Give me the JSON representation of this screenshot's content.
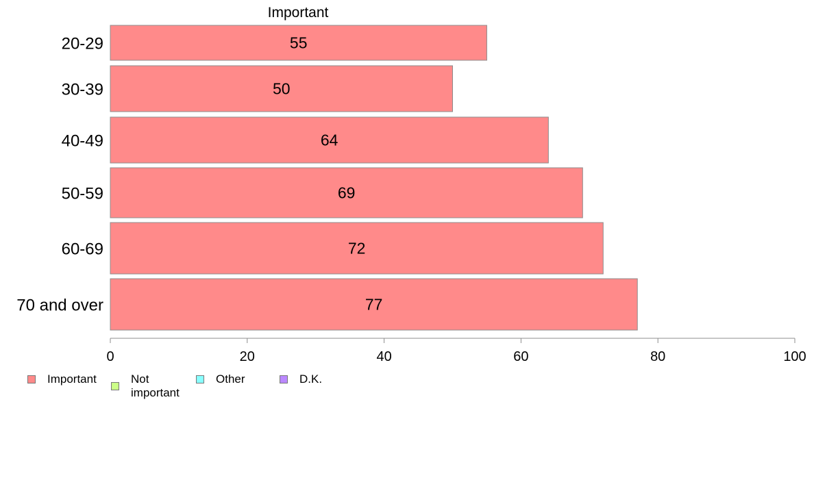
{
  "chart_data": {
    "type": "bar",
    "orientation": "horizontal",
    "title": "Important",
    "categories": [
      "20-29",
      "30-39",
      "40-49",
      "50-59",
      "60-69",
      "70 and over"
    ],
    "series": [
      {
        "name": "Important",
        "values": [
          55,
          50,
          64,
          69,
          72,
          77
        ],
        "color": "#ff8a8a"
      }
    ],
    "xlim": [
      0,
      100
    ],
    "xticks": [
      0,
      20,
      40,
      60,
      80,
      100
    ],
    "xlabel": "",
    "ylabel": "",
    "grid": false,
    "data_labels": true,
    "legend": {
      "position": "bottom-left",
      "items": [
        {
          "label": "Important",
          "color": "#ff8a8a"
        },
        {
          "label": "Not\nimportant",
          "color": "#ccff88"
        },
        {
          "label": "Other",
          "color": "#88ffff"
        },
        {
          "label": "D.K.",
          "color": "#bb88ff"
        }
      ]
    }
  }
}
